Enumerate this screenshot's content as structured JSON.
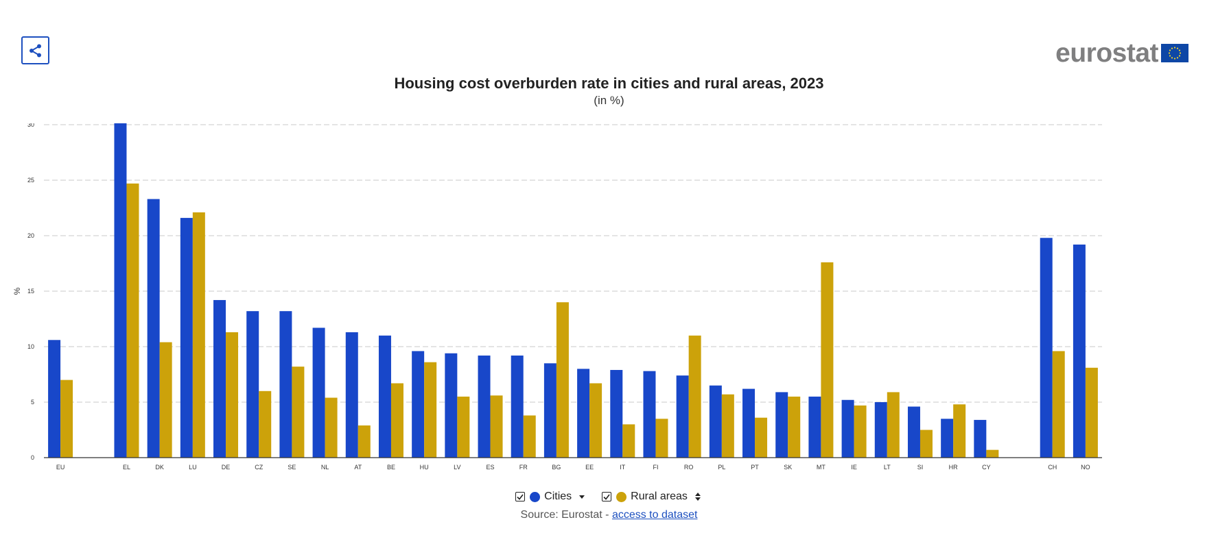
{
  "header": {
    "share_icon": "share-icon",
    "logo_text": "eurostat",
    "flag_icon": "eu-flag-icon"
  },
  "colors": {
    "cities": "#1847c9",
    "rural": "#cca20a",
    "grid": "#c8c8c8",
    "axis": "#333333"
  },
  "chart_data": {
    "type": "bar",
    "title": "Housing cost overburden rate in cities and rural areas, 2023",
    "subtitle": "(in %)",
    "xlabel": "",
    "ylabel": "%",
    "ylim": [
      0,
      30
    ],
    "yticks": [
      0,
      5,
      10,
      15,
      20,
      25,
      30
    ],
    "grid": true,
    "categories": [
      "EU",
      "",
      "EL",
      "DK",
      "LU",
      "DE",
      "CZ",
      "SE",
      "NL",
      "AT",
      "BE",
      "HU",
      "LV",
      "ES",
      "FR",
      "BG",
      "EE",
      "IT",
      "FI",
      "RO",
      "PL",
      "PT",
      "SK",
      "MT",
      "IE",
      "LT",
      "SI",
      "HR",
      "CY",
      "",
      "CH",
      "NO"
    ],
    "series": [
      {
        "name": "Cities",
        "values": [
          10.6,
          null,
          31.0,
          23.3,
          21.6,
          14.2,
          13.2,
          13.2,
          11.7,
          11.3,
          11.0,
          9.6,
          9.4,
          9.2,
          9.2,
          8.5,
          8.0,
          7.9,
          7.8,
          7.4,
          6.5,
          6.2,
          5.9,
          5.5,
          5.2,
          5.0,
          4.6,
          3.5,
          3.4,
          null,
          19.8,
          19.2
        ]
      },
      {
        "name": "Rural areas",
        "values": [
          7.0,
          null,
          24.7,
          10.4,
          22.1,
          11.3,
          6.0,
          8.2,
          5.4,
          2.9,
          6.7,
          8.6,
          5.5,
          5.6,
          3.8,
          14.0,
          6.7,
          3.0,
          3.5,
          11.0,
          5.7,
          3.6,
          5.5,
          17.6,
          4.7,
          5.9,
          2.5,
          4.8,
          0.7,
          null,
          9.6,
          8.1
        ]
      }
    ]
  },
  "legend": {
    "items": [
      {
        "label": "Cities",
        "sort_icon": "caret-down-icon"
      },
      {
        "label": "Rural areas",
        "sort_icon": "sort-updown-icon"
      }
    ]
  },
  "source": {
    "prefix": "Source: Eurostat - ",
    "link_text": "access to dataset"
  }
}
